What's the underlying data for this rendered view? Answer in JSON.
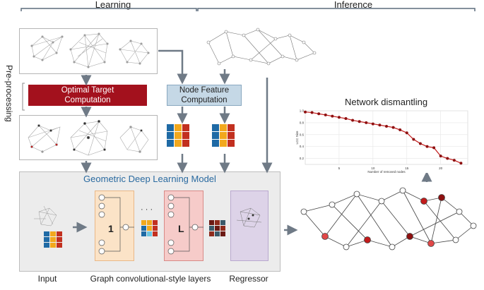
{
  "headers": {
    "learning": "Learning",
    "inference": "Inference"
  },
  "side_label": "Pre-processing",
  "boxes": {
    "optimal_target": "Optimal Target\nComputation",
    "node_feature": "Node Feature\nComputation"
  },
  "gdl": {
    "title": "Geometric Deep Learning Model",
    "layer_first": "1",
    "layer_last": "L",
    "ellipsis": "· · ·"
  },
  "bottom_labels": {
    "input": "Input",
    "layers": "Graph convolutional-style layers",
    "regressor": "Regressor"
  },
  "dismantling": {
    "title": "Network dismantling"
  },
  "colors": {
    "dark_red": "#a3111d",
    "box_blue": "#c5d8e6",
    "arrow_gray": "#6f7a86",
    "gdl_blue": "#2a6aa0",
    "series": "#c21b1b"
  },
  "chart_data": {
    "type": "line",
    "ylabel": "LCC Size",
    "xlabel": "Number of removed nodes",
    "xticks": [
      "5",
      "10",
      "15",
      "20"
    ],
    "yticks": [
      "1.0",
      "0.8",
      "0.6",
      "0.4",
      "0.2"
    ],
    "ylim": [
      0.1,
      1.0
    ],
    "xlim": [
      0,
      24
    ],
    "grid": true,
    "x": [
      0,
      1,
      2,
      3,
      4,
      5,
      6,
      7,
      8,
      9,
      10,
      11,
      12,
      13,
      14,
      15,
      16,
      17,
      18,
      19,
      20,
      21,
      22,
      23
    ],
    "y": [
      0.98,
      0.97,
      0.95,
      0.93,
      0.91,
      0.89,
      0.87,
      0.84,
      0.82,
      0.8,
      0.78,
      0.76,
      0.74,
      0.72,
      0.68,
      0.63,
      0.52,
      0.45,
      0.4,
      0.38,
      0.24,
      0.2,
      0.17,
      0.12
    ]
  }
}
